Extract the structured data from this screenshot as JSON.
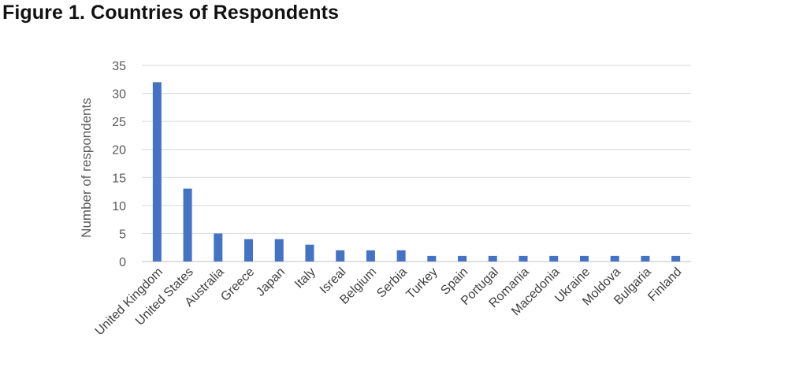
{
  "page": {
    "title": "Figure 1. Countries of Respondents"
  },
  "chart_data": {
    "type": "bar",
    "categories": [
      "United Kingdom",
      "United States",
      "Australia",
      "Greece",
      "Japan",
      "Italy",
      "Isreal",
      "Belgium",
      "Serbia",
      "Turkey",
      "Spain",
      "Portugal",
      "Romania",
      "Macedonia",
      "Ukraine",
      "Moldova",
      "Bulgaria",
      "Finland"
    ],
    "values": [
      32,
      13,
      5,
      4,
      4,
      3,
      2,
      2,
      2,
      1,
      1,
      1,
      1,
      1,
      1,
      1,
      1,
      1
    ],
    "title": "Figure 1. Countries of Respondents",
    "xlabel": "",
    "ylabel": "Number of respondents",
    "ylim": [
      0,
      35
    ],
    "yticks": [
      0,
      5,
      10,
      15,
      20,
      25,
      30,
      35
    ],
    "grid": true,
    "bar_color": "#4472C4",
    "grid_color": "#D9D9D9"
  }
}
